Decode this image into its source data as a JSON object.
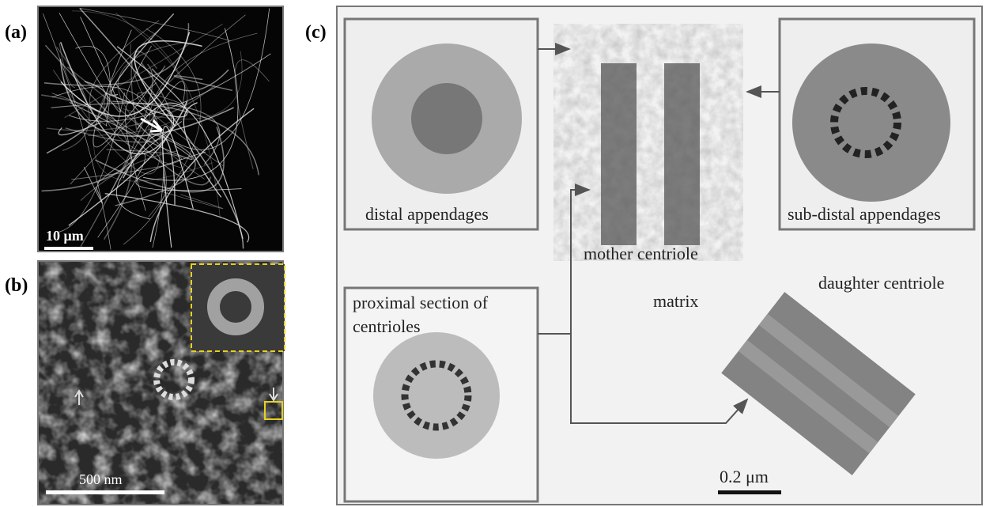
{
  "panels": [
    {
      "label": "(a)",
      "scale_bar": "10 μm"
    },
    {
      "label": "(b)",
      "scale_bar": "500 nm"
    },
    {
      "label": "(c)",
      "scale_bar": "0.2 μm",
      "annotations": {
        "distal": "distal appendages",
        "subdistal": "sub-distal appendages",
        "mother": "mother centriole",
        "daughter": "daughter centriole",
        "matrix": "matrix",
        "proximal": [
          "proximal section of",
          "centrioles"
        ]
      }
    }
  ]
}
